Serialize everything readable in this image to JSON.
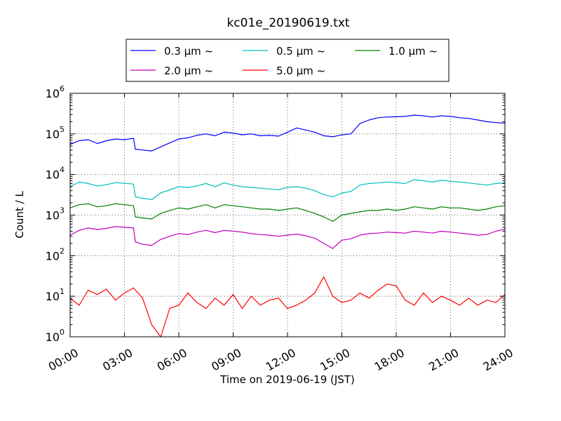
{
  "chart_data": {
    "type": "line",
    "title": "kc01e_20190619.txt",
    "xlabel": "Time on 2019-06-19 (JST)",
    "ylabel": "Count / L",
    "yscale": "log",
    "xlim": [
      0,
      24
    ],
    "ylim": [
      1,
      1000000
    ],
    "x_ticks": [
      "00:00",
      "03:00",
      "06:00",
      "09:00",
      "12:00",
      "15:00",
      "18:00",
      "21:00",
      "24:00"
    ],
    "y_ticks": [
      {
        "base": "10",
        "exp": "0"
      },
      {
        "base": "10",
        "exp": "1"
      },
      {
        "base": "10",
        "exp": "2"
      },
      {
        "base": "10",
        "exp": "3"
      },
      {
        "base": "10",
        "exp": "4"
      },
      {
        "base": "10",
        "exp": "5"
      },
      {
        "base": "10",
        "exp": "6"
      }
    ],
    "grid": true,
    "legend_position": "top-center",
    "series": [
      {
        "name": "0.3 μm ~",
        "color": "#0000ff",
        "x": [
          0.0,
          0.5,
          1.0,
          1.5,
          2.0,
          2.5,
          3.0,
          3.5,
          3.6,
          4.0,
          4.5,
          5.0,
          5.5,
          6.0,
          6.5,
          7.0,
          7.5,
          8.0,
          8.5,
          9.0,
          9.5,
          10.0,
          10.5,
          11.0,
          11.5,
          12.0,
          12.5,
          13.0,
          13.5,
          14.0,
          14.5,
          15.0,
          15.5,
          16.0,
          16.5,
          17.0,
          17.5,
          18.0,
          18.5,
          19.0,
          19.5,
          20.0,
          20.5,
          21.0,
          21.5,
          22.0,
          22.5,
          23.0,
          23.5,
          24.0
        ],
        "values": [
          55000,
          68000,
          72000,
          58000,
          68000,
          75000,
          72000,
          78000,
          42000,
          40000,
          38000,
          48000,
          60000,
          75000,
          80000,
          92000,
          100000,
          90000,
          110000,
          105000,
          95000,
          100000,
          90000,
          92000,
          88000,
          110000,
          140000,
          125000,
          110000,
          90000,
          85000,
          95000,
          100000,
          180000,
          220000,
          250000,
          260000,
          265000,
          270000,
          290000,
          280000,
          260000,
          280000,
          270000,
          250000,
          240000,
          220000,
          200000,
          190000,
          185000
        ]
      },
      {
        "name": "0.5 μm ~",
        "color": "#00bfbf",
        "x": [
          0.0,
          0.5,
          1.0,
          1.5,
          2.0,
          2.5,
          3.0,
          3.5,
          3.6,
          4.0,
          4.5,
          5.0,
          5.5,
          6.0,
          6.5,
          7.0,
          7.5,
          8.0,
          8.5,
          9.0,
          9.5,
          10.0,
          10.5,
          11.0,
          11.5,
          12.0,
          12.5,
          13.0,
          13.5,
          14.0,
          14.5,
          15.0,
          15.5,
          16.0,
          16.5,
          17.0,
          17.5,
          18.0,
          18.5,
          19.0,
          19.5,
          20.0,
          20.5,
          21.0,
          21.5,
          22.0,
          22.5,
          23.0,
          23.5,
          24.0
        ],
        "values": [
          5000,
          6500,
          6000,
          5200,
          5600,
          6300,
          6100,
          5800,
          2800,
          2600,
          2400,
          3500,
          4200,
          5000,
          4800,
          5200,
          6000,
          5000,
          6200,
          5500,
          5000,
          4800,
          4600,
          4400,
          4200,
          4800,
          5000,
          4600,
          4000,
          3200,
          2800,
          3500,
          3800,
          5500,
          6000,
          6200,
          6500,
          6300,
          6000,
          7500,
          7000,
          6500,
          7200,
          6800,
          6500,
          6200,
          5800,
          5500,
          6000,
          6200
        ]
      },
      {
        "name": "1.0 μm ~",
        "color": "#008000",
        "x": [
          0.0,
          0.5,
          1.0,
          1.5,
          2.0,
          2.5,
          3.0,
          3.5,
          3.6,
          4.0,
          4.5,
          5.0,
          5.5,
          6.0,
          6.5,
          7.0,
          7.5,
          8.0,
          8.5,
          9.0,
          9.5,
          10.0,
          10.5,
          11.0,
          11.5,
          12.0,
          12.5,
          13.0,
          13.5,
          14.0,
          14.5,
          15.0,
          15.5,
          16.0,
          16.5,
          17.0,
          17.5,
          18.0,
          18.5,
          19.0,
          19.5,
          20.0,
          20.5,
          21.0,
          21.5,
          22.0,
          22.5,
          23.0,
          23.5,
          24.0
        ],
        "values": [
          1500,
          1800,
          1900,
          1600,
          1700,
          1900,
          1800,
          1700,
          900,
          850,
          800,
          1100,
          1300,
          1500,
          1400,
          1600,
          1800,
          1500,
          1800,
          1700,
          1600,
          1500,
          1400,
          1400,
          1300,
          1400,
          1500,
          1300,
          1100,
          900,
          700,
          1000,
          1100,
          1200,
          1300,
          1300,
          1400,
          1300,
          1400,
          1600,
          1500,
          1400,
          1600,
          1500,
          1500,
          1400,
          1300,
          1400,
          1600,
          1700
        ]
      },
      {
        "name": "2.0 μm ~",
        "color": "#bf00bf",
        "x": [
          0.0,
          0.5,
          1.0,
          1.5,
          2.0,
          2.5,
          3.0,
          3.5,
          3.6,
          4.0,
          4.5,
          5.0,
          5.5,
          6.0,
          6.5,
          7.0,
          7.5,
          8.0,
          8.5,
          9.0,
          9.5,
          10.0,
          10.5,
          11.0,
          11.5,
          12.0,
          12.5,
          13.0,
          13.5,
          14.0,
          14.5,
          15.0,
          15.5,
          16.0,
          16.5,
          17.0,
          17.5,
          18.0,
          18.5,
          19.0,
          19.5,
          20.0,
          20.5,
          21.0,
          21.5,
          22.0,
          22.5,
          23.0,
          23.5,
          24.0
        ],
        "values": [
          320,
          420,
          480,
          440,
          470,
          520,
          500,
          480,
          220,
          190,
          180,
          250,
          300,
          350,
          330,
          380,
          420,
          370,
          420,
          400,
          380,
          350,
          330,
          320,
          300,
          320,
          340,
          310,
          270,
          200,
          150,
          240,
          260,
          320,
          350,
          360,
          380,
          370,
          360,
          400,
          380,
          360,
          400,
          380,
          360,
          340,
          320,
          330,
          400,
          450
        ]
      },
      {
        "name": "5.0 μm ~",
        "color": "#ff0000",
        "x": [
          0.0,
          0.5,
          1.0,
          1.5,
          2.0,
          2.5,
          3.0,
          3.5,
          4.0,
          4.5,
          5.0,
          5.5,
          6.0,
          6.5,
          7.0,
          7.5,
          8.0,
          8.5,
          9.0,
          9.5,
          10.0,
          10.5,
          11.0,
          11.5,
          12.0,
          12.5,
          13.0,
          13.5,
          14.0,
          14.5,
          15.0,
          15.5,
          16.0,
          16.5,
          17.0,
          17.5,
          18.0,
          18.5,
          19.0,
          19.5,
          20.0,
          20.5,
          21.0,
          21.5,
          22.0,
          22.5,
          23.0,
          23.5,
          24.0
        ],
        "values": [
          9,
          6,
          14,
          11,
          15,
          8,
          12,
          16,
          9,
          2,
          1,
          5,
          6,
          12,
          7,
          5,
          9,
          6,
          11,
          5,
          10,
          6,
          8,
          9,
          5,
          6,
          8,
          12,
          30,
          10,
          7,
          8,
          12,
          9,
          14,
          20,
          18,
          8,
          6,
          12,
          7,
          10,
          8,
          6,
          9,
          6,
          8,
          7,
          11
        ]
      }
    ]
  }
}
